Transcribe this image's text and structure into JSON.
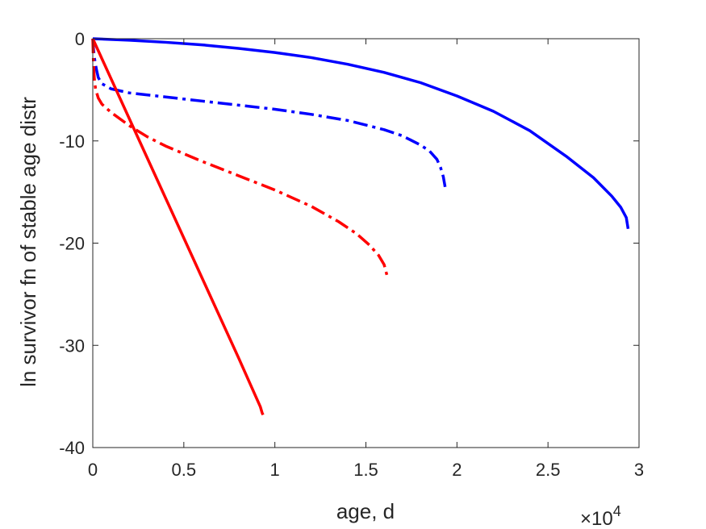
{
  "chart_data": {
    "type": "line",
    "xlabel": "age, d",
    "ylabel": "ln survivor fn of stable age distr",
    "x_multiplier": {
      "base": "×10",
      "exponent": "4"
    },
    "xlim": [
      0,
      30000
    ],
    "ylim": [
      -40,
      0
    ],
    "xticks": [
      0,
      5000,
      10000,
      15000,
      20000,
      25000,
      30000
    ],
    "xtick_labels": [
      "0",
      "0.5",
      "1",
      "1.5",
      "2",
      "2.5",
      "3"
    ],
    "yticks": [
      0,
      -10,
      -20,
      -30,
      -40
    ],
    "ytick_labels": [
      "0",
      "-10",
      "-20",
      "-30",
      "-40"
    ],
    "grid": false,
    "series": [
      {
        "color": "#0000ff",
        "style": "solid",
        "x": [
          0,
          2000,
          4000,
          6000,
          8000,
          10000,
          12000,
          14000,
          16000,
          18000,
          20000,
          22000,
          24000,
          26000,
          27500,
          28500,
          29000,
          29300,
          29400
        ],
        "y": [
          0,
          -0.15,
          -0.35,
          -0.6,
          -0.95,
          -1.35,
          -1.85,
          -2.5,
          -3.3,
          -4.3,
          -5.6,
          -7.1,
          -9.0,
          -11.5,
          -13.6,
          -15.4,
          -16.5,
          -17.5,
          -18.6
        ]
      },
      {
        "color": "#0000ff",
        "style": "dashdot",
        "x": [
          0,
          50,
          100,
          200,
          300,
          500,
          1000,
          2000,
          4000,
          6000,
          8000,
          10000,
          12000,
          14000,
          16000,
          17000,
          18000,
          18500,
          18900,
          19100,
          19250,
          19350
        ],
        "y": [
          0,
          -1.2,
          -2.0,
          -3.0,
          -3.8,
          -4.4,
          -4.9,
          -5.3,
          -5.7,
          -6.1,
          -6.5,
          -6.9,
          -7.4,
          -8.0,
          -8.9,
          -9.5,
          -10.4,
          -11.0,
          -11.8,
          -12.6,
          -13.5,
          -14.5
        ]
      },
      {
        "color": "#ff0000",
        "style": "solid",
        "x": [
          0,
          2000,
          4000,
          6000,
          8000,
          9000,
          9200,
          9300,
          9350
        ],
        "y": [
          0,
          -7.8,
          -15.6,
          -23.4,
          -31.2,
          -35.2,
          -36.0,
          -36.6,
          -36.8
        ]
      },
      {
        "color": "#ff0000",
        "style": "dashdot",
        "x": [
          0,
          30,
          80,
          150,
          300,
          500,
          1000,
          2000,
          3000,
          4000,
          6000,
          8000,
          10000,
          12000,
          13500,
          14500,
          15200,
          15700,
          16000,
          16150
        ],
        "y": [
          0,
          -2.0,
          -3.8,
          -4.9,
          -5.8,
          -6.4,
          -7.2,
          -8.5,
          -9.6,
          -10.5,
          -12.0,
          -13.4,
          -14.8,
          -16.4,
          -17.9,
          -19.1,
          -20.2,
          -21.2,
          -22.1,
          -23.1
        ]
      }
    ]
  }
}
